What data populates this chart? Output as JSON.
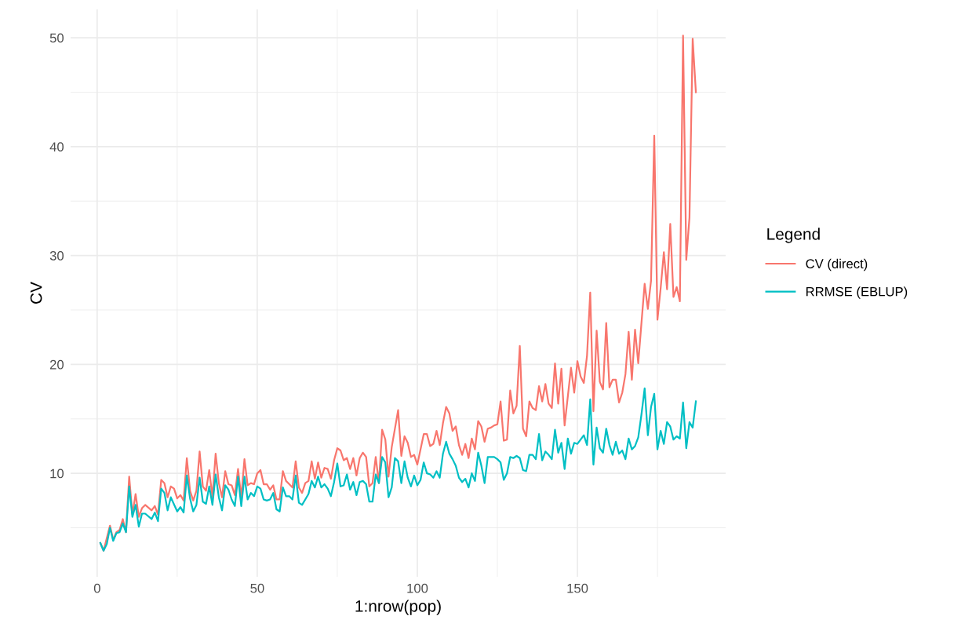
{
  "chart_data": {
    "type": "line",
    "xlabel": "1:nrow(pop)",
    "ylabel": "CV",
    "legend_title": "Legend",
    "legend": "right",
    "grid": true,
    "xlim": [
      -8.3,
      196.3
    ],
    "ylim": [
      0.5,
      52.6
    ],
    "xticks": [
      0,
      {
        "value": 25,
        "label": null
      },
      50,
      {
        "value": 75,
        "label": null
      },
      100,
      {
        "value": 125,
        "label": null
      },
      150,
      {
        "value": 175,
        "label": null
      }
    ],
    "yticks": [
      {
        "value": 5,
        "label": null
      },
      10,
      {
        "value": 15,
        "label": null
      },
      20,
      {
        "value": 25,
        "label": null
      },
      30,
      {
        "value": 35,
        "label": null
      },
      40,
      {
        "value": 45,
        "label": null
      },
      50
    ],
    "series": [
      {
        "name": "CV (direct)",
        "color": "#f8766d",
        "x": [
          1,
          2,
          4,
          5,
          6,
          7,
          8,
          9,
          10,
          11,
          12,
          13,
          14,
          15,
          17,
          18,
          19,
          20,
          21,
          22,
          23,
          24,
          25,
          26,
          27,
          28,
          29,
          30,
          31,
          32,
          33,
          34,
          35,
          36,
          37,
          38,
          39,
          40,
          41,
          42,
          43,
          44,
          45,
          46,
          47,
          48,
          49,
          50,
          51,
          52,
          53,
          54,
          55,
          56,
          57,
          58,
          59,
          60,
          61,
          62,
          63,
          64,
          65,
          66,
          67,
          68,
          69,
          70,
          71,
          72,
          73,
          74,
          75,
          76,
          77,
          78,
          79,
          80,
          81,
          82,
          83,
          84,
          85,
          86,
          87,
          88,
          89,
          90,
          91,
          92,
          94,
          95,
          96,
          97,
          98,
          99,
          100,
          102,
          103,
          104,
          105,
          106,
          107,
          108,
          109,
          110,
          111,
          112,
          113,
          114,
          115,
          116,
          117,
          118,
          119,
          120,
          121,
          122,
          123,
          124,
          125,
          126,
          127,
          128,
          129,
          130,
          131,
          132,
          133,
          134,
          135,
          136,
          137,
          138,
          139,
          140,
          141,
          142,
          143,
          144,
          145,
          146,
          148,
          149,
          150,
          151,
          152,
          153,
          154,
          155,
          156,
          157,
          158,
          159,
          160,
          161,
          162,
          163,
          164,
          165,
          166,
          167,
          168,
          169,
          170,
          171,
          172,
          173,
          174,
          175,
          176,
          177,
          178,
          179,
          180,
          181,
          182,
          183,
          184,
          185,
          186,
          187
        ],
        "values": [
          3.6,
          2.9,
          5.2,
          3.9,
          4.6,
          4.8,
          5.8,
          4.6,
          9.7,
          6.2,
          8.1,
          6.0,
          6.8,
          7.1,
          6.6,
          7.0,
          6.2,
          9.4,
          9.1,
          7.8,
          8.8,
          8.6,
          7.7,
          8.0,
          7.5,
          11.4,
          8.4,
          7.5,
          8.4,
          12.0,
          8.8,
          8.4,
          10.3,
          7.8,
          11.8,
          9.1,
          7.8,
          10.2,
          9.0,
          8.9,
          8.0,
          10.4,
          7.8,
          11.3,
          8.9,
          9.1,
          9.0,
          10.0,
          10.3,
          9.0,
          9.0,
          8.5,
          8.9,
          7.6,
          7.6,
          10.2,
          9.3,
          9.0,
          8.7,
          11.1,
          8.7,
          8.2,
          9.1,
          9.3,
          11.1,
          9.5,
          11.0,
          9.6,
          10.5,
          10.4,
          9.5,
          11.2,
          12.3,
          12.1,
          11.2,
          11.4,
          10.4,
          11.4,
          9.8,
          11.4,
          11.9,
          11.5,
          8.8,
          9.1,
          11.5,
          9.1,
          14.0,
          13.1,
          9.7,
          12.4,
          15.8,
          11.6,
          13.4,
          12.8,
          11.5,
          11.7,
          10.8,
          13.6,
          13.6,
          12.5,
          12.7,
          13.9,
          12.6,
          14.6,
          16.1,
          15.5,
          13.9,
          14.3,
          12.6,
          11.7,
          12.7,
          11.4,
          13.2,
          12.2,
          14.8,
          14.3,
          12.9,
          14.1,
          14.2,
          14.4,
          14.5,
          16.6,
          13.0,
          13.1,
          17.6,
          15.5,
          16.2,
          21.7,
          14.1,
          13.4,
          16.6,
          16.0,
          15.8,
          18.0,
          16.6,
          18.2,
          16.4,
          16.0,
          20.1,
          16.4,
          19.6,
          14.4,
          19.7,
          17.4,
          20.3,
          18.9,
          18.3,
          20.8,
          26.6,
          15.7,
          23.1,
          18.4,
          17.7,
          23.8,
          17.9,
          18.6,
          18.6,
          16.5,
          17.4,
          19.1,
          23.0,
          18.6,
          23.2,
          20.1,
          23.8,
          27.4,
          25.1,
          27.7,
          41.0,
          24.1,
          27.0,
          30.3,
          26.9,
          32.9,
          26.2,
          27.1,
          25.8,
          50.2,
          29.6,
          33.5,
          49.9,
          45.0
        ]
      },
      {
        "name": "RRMSE (EBLUP)",
        "color": "#00bfc4",
        "x": [
          1,
          2,
          3,
          4,
          5,
          6,
          7,
          8,
          9,
          10,
          11,
          12,
          13,
          14,
          15,
          17,
          18,
          19,
          20,
          21,
          22,
          23,
          25,
          26,
          27,
          28,
          29,
          30,
          31,
          32,
          33,
          34,
          35,
          36,
          37,
          38,
          39,
          40,
          41,
          42,
          43,
          44,
          45,
          46,
          47,
          48,
          49,
          50,
          51,
          52,
          53,
          54,
          55,
          56,
          57,
          58,
          59,
          60,
          61,
          62,
          63,
          64,
          65,
          66,
          67,
          68,
          69,
          70,
          71,
          72,
          73,
          74,
          75,
          76,
          77,
          78,
          79,
          80,
          81,
          82,
          83,
          84,
          85,
          86,
          87,
          88,
          89,
          90,
          91,
          92,
          93,
          94,
          95,
          96,
          97,
          98,
          99,
          100,
          101,
          102,
          103,
          104,
          105,
          106,
          107,
          108,
          109,
          110,
          111,
          112,
          113,
          114,
          115,
          116,
          117,
          118,
          119,
          120,
          121,
          122,
          124,
          125,
          126,
          127,
          128,
          129,
          130,
          131,
          132,
          133,
          134,
          135,
          136,
          137,
          138,
          139,
          140,
          141,
          142,
          143,
          144,
          145,
          146,
          147,
          148,
          149,
          150,
          151,
          152,
          153,
          154,
          155,
          156,
          157,
          158,
          159,
          160,
          161,
          162,
          163,
          164,
          165,
          166,
          167,
          168,
          169,
          170,
          171,
          172,
          173,
          174,
          175,
          176,
          177,
          178,
          179,
          180,
          181,
          182,
          183,
          184,
          185,
          186,
          187
        ],
        "values": [
          3.6,
          2.9,
          3.5,
          5.0,
          3.8,
          4.5,
          4.6,
          5.4,
          4.6,
          8.8,
          6.0,
          7.1,
          5.1,
          6.3,
          6.3,
          5.8,
          6.4,
          5.6,
          8.6,
          8.2,
          6.6,
          7.8,
          6.5,
          6.9,
          6.4,
          9.8,
          7.7,
          6.5,
          7.1,
          9.6,
          7.4,
          7.2,
          8.8,
          7.1,
          9.9,
          7.8,
          6.6,
          8.9,
          8.5,
          7.6,
          7.0,
          9.7,
          7.0,
          9.7,
          7.6,
          8.2,
          7.9,
          8.8,
          8.6,
          7.6,
          7.5,
          7.6,
          8.2,
          6.7,
          6.5,
          8.7,
          7.9,
          7.9,
          7.6,
          9.8,
          7.3,
          7.1,
          7.6,
          8.1,
          9.3,
          8.7,
          9.7,
          8.7,
          9.0,
          8.6,
          7.9,
          9.2,
          10.9,
          8.8,
          8.9,
          9.9,
          8.5,
          9.2,
          8.0,
          9.2,
          9.3,
          9.0,
          7.4,
          7.4,
          9.9,
          9.1,
          11.5,
          11.0,
          7.8,
          8.7,
          11.4,
          11.1,
          9.1,
          11.1,
          9.6,
          8.8,
          9.8,
          8.9,
          9.4,
          11.0,
          10.0,
          9.9,
          9.6,
          10.2,
          9.6,
          11.8,
          12.9,
          11.8,
          11.3,
          10.7,
          9.6,
          9.2,
          9.5,
          8.7,
          10.0,
          9.3,
          11.9,
          10.7,
          9.1,
          11.5,
          11.5,
          11.3,
          11.0,
          9.4,
          10.0,
          11.5,
          11.4,
          11.6,
          11.4,
          10.3,
          10.2,
          11.7,
          11.7,
          11.3,
          13.6,
          11.2,
          12.0,
          11.7,
          11.3,
          14.0,
          11.9,
          12.8,
          10.4,
          13.2,
          11.8,
          12.8,
          12.7,
          13.1,
          13.5,
          12.6,
          16.8,
          10.8,
          14.2,
          12.3,
          11.9,
          14.1,
          12.6,
          11.7,
          12.9,
          11.8,
          12.1,
          11.3,
          13.2,
          12.2,
          12.5,
          13.3,
          15.4,
          17.8,
          13.5,
          16.1,
          17.3,
          12.2,
          13.9,
          12.7,
          14.7,
          14.3,
          13.1,
          13.4,
          13.2,
          16.5,
          12.3,
          14.7,
          14.2,
          16.6
        ]
      }
    ]
  }
}
